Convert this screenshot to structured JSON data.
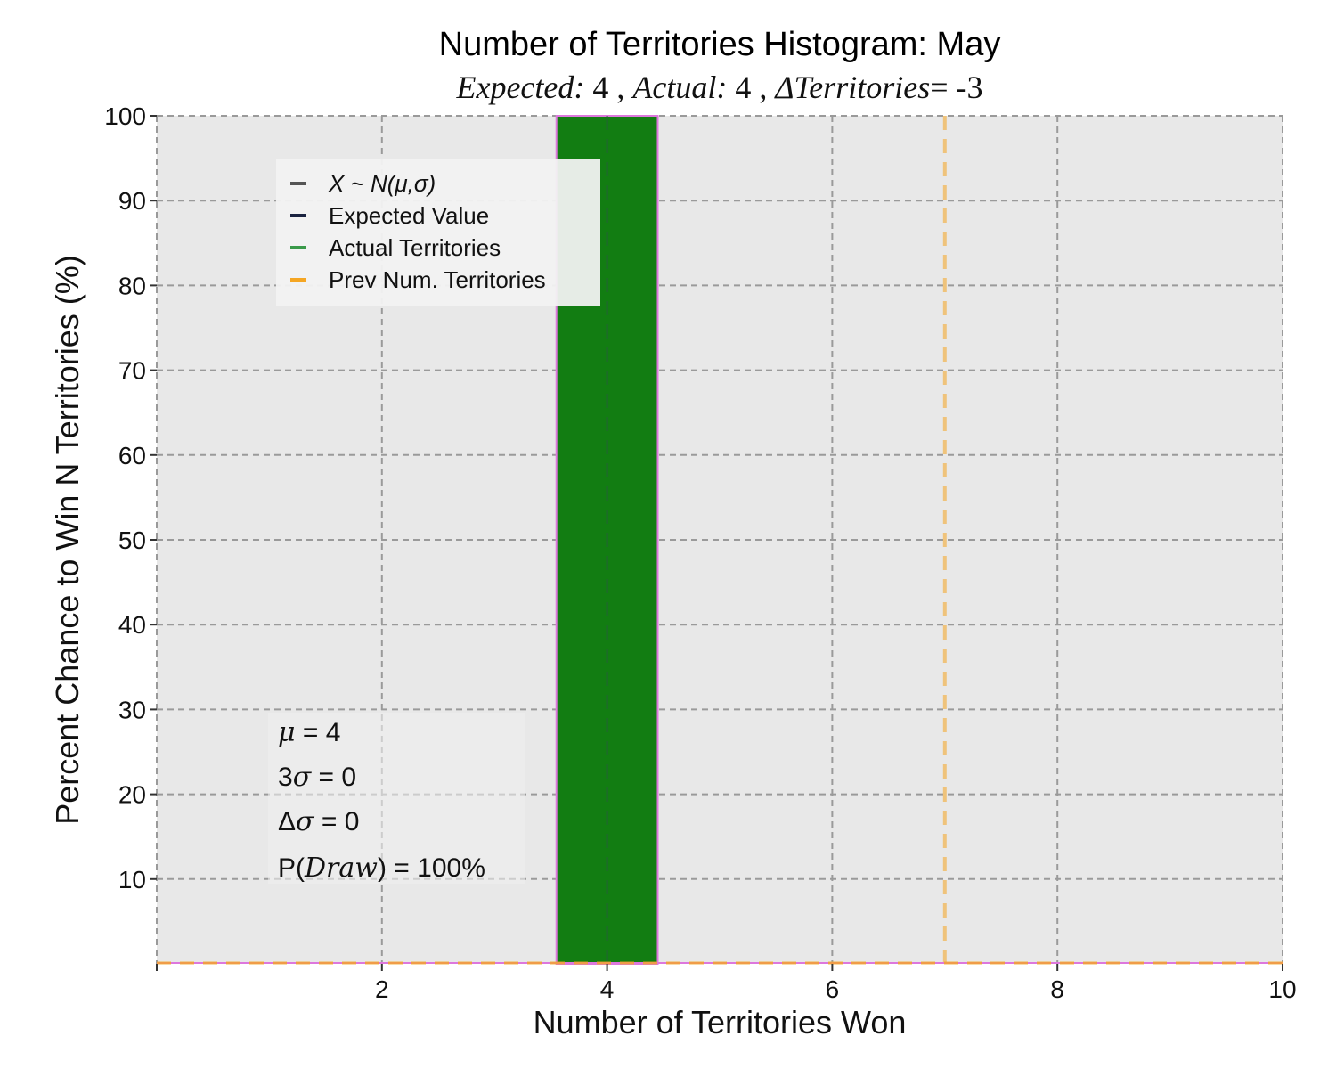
{
  "chart_data": {
    "type": "bar",
    "title": "Number of Territories Histogram: May",
    "subtitle": {
      "expected_label": "Expected:",
      "expected_value": "4",
      "actual_label": "Actual:",
      "actual_value": "4",
      "delta_label": "ΔTerritories",
      "delta_value": "= -3",
      "separator": ","
    },
    "xlabel": "Number of Territories Won",
    "ylabel": "Percent Chance to Win N Territories (%)",
    "xlim": [
      0,
      10
    ],
    "ylim": [
      0,
      100
    ],
    "xticks": [
      2,
      4,
      6,
      8,
      10
    ],
    "yticks": [
      10,
      20,
      30,
      40,
      50,
      60,
      70,
      80,
      90,
      100
    ],
    "grid": true,
    "bars": [
      {
        "x": 4,
        "width": 0.9,
        "value": 100,
        "color": "#127d12"
      }
    ],
    "expected_value": 4,
    "actual_territories": 4,
    "prev_num_territories": 7,
    "legend": {
      "position": "upper-left",
      "entries": [
        {
          "label": "X ~ N(μ,σ)",
          "color": "#555555",
          "italic": true
        },
        {
          "label": "Expected Value",
          "color": "#1a2340",
          "italic": false
        },
        {
          "label": "Actual Territories",
          "color": "#3a9a4a",
          "italic": false
        },
        {
          "label": "Prev Num. Territories",
          "color": "#f5a623",
          "italic": false
        }
      ]
    },
    "stats": {
      "mu_sym": "μ",
      "mu_value": " = 4",
      "sigma3_prefix": "3",
      "sigma_sym": "σ",
      "sigma3_value": " = 0",
      "dsigma_prefix": "Δ",
      "dsigma_value": " = 0",
      "p_prefix": "P(",
      "p_sym": "Draw",
      "p_value": ") = 100%"
    },
    "colors": {
      "plot_bg": "#e8e8e8",
      "grid": "#9a9a9a",
      "bar": "#127d12",
      "bar_edge": "#dd77dd",
      "expected_line": "#3a4660",
      "prev_line": "#f5a623",
      "normal_line": "#f5a623"
    }
  }
}
